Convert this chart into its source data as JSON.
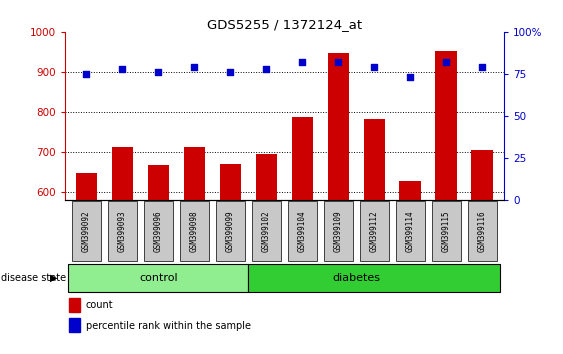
{
  "title": "GDS5255 / 1372124_at",
  "samples": [
    "GSM399092",
    "GSM399093",
    "GSM399096",
    "GSM399098",
    "GSM399099",
    "GSM399102",
    "GSM399104",
    "GSM399109",
    "GSM399112",
    "GSM399114",
    "GSM399115",
    "GSM399116"
  ],
  "counts": [
    648,
    712,
    668,
    712,
    670,
    695,
    787,
    947,
    782,
    627,
    951,
    706
  ],
  "percentile_ranks": [
    75,
    78,
    76,
    79,
    76,
    78,
    82,
    82,
    79,
    73,
    82,
    79
  ],
  "ylim_left": [
    580,
    1000
  ],
  "ylim_right": [
    0,
    100
  ],
  "yticks_left": [
    600,
    700,
    800,
    900,
    1000
  ],
  "yticks_right": [
    0,
    25,
    50,
    75,
    100
  ],
  "n_control": 5,
  "n_diabetes": 7,
  "control_label": "control",
  "diabetes_label": "diabetes",
  "control_color": "#90EE90",
  "diabetes_color": "#32CD32",
  "bar_color": "#CC0000",
  "dot_color": "#0000CC",
  "tick_area_color": "#C8C8C8",
  "left_axis_color": "#CC0000",
  "right_axis_color": "#0000CC",
  "bar_width": 0.6,
  "dot_size": 20,
  "legend_count_label": "count",
  "legend_pct_label": "percentile rank within the sample",
  "disease_state_label": "disease state"
}
